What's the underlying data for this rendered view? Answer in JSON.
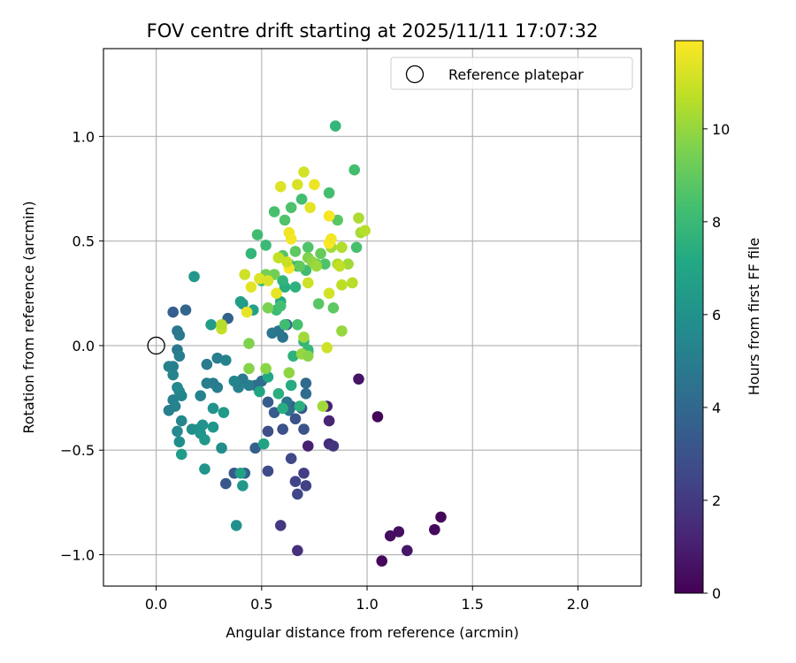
{
  "chart_data": {
    "type": "scatter",
    "title": "FOV centre drift starting at 2025/11/11 17:07:32",
    "xlabel": "Angular distance from reference (arcmin)",
    "ylabel": "Rotation from reference (arcmin)",
    "xlim": [
      -0.25,
      2.3
    ],
    "ylim": [
      -1.15,
      1.42
    ],
    "xticks": [
      0.0,
      0.5,
      1.0,
      1.5,
      2.0
    ],
    "xtick_labels": [
      "0.0",
      "0.5",
      "1.0",
      "1.5",
      "2.0"
    ],
    "yticks": [
      -1.0,
      -0.5,
      0.0,
      0.5,
      1.0
    ],
    "ytick_labels": [
      "−1.0",
      "−0.5",
      "0.0",
      "0.5",
      "1.0"
    ],
    "grid": true,
    "legend": {
      "position": "top-right",
      "entries": [
        "Reference platepar"
      ]
    },
    "reference_point": {
      "x": 0.0,
      "y": 0.0,
      "label": "Reference platepar"
    },
    "colorbar": {
      "label": "Hours from first FF file",
      "colormap": "viridis",
      "range": [
        0,
        11.9
      ],
      "ticks": [
        0,
        2,
        4,
        6,
        8,
        10
      ],
      "tick_labels": [
        "0",
        "2",
        "4",
        "6",
        "8",
        "10"
      ]
    },
    "points": [
      [
        1.05,
        -0.34,
        0.1
      ],
      [
        1.07,
        -1.03,
        0.2
      ],
      [
        1.11,
        -0.91,
        0.4
      ],
      [
        1.15,
        -0.89,
        0.5
      ],
      [
        1.19,
        -0.98,
        0.7
      ],
      [
        1.32,
        -0.88,
        0.3
      ],
      [
        1.35,
        -0.82,
        0.2
      ],
      [
        0.96,
        -0.16,
        0.6
      ],
      [
        0.72,
        -0.48,
        1.0
      ],
      [
        0.81,
        -0.29,
        1.1
      ],
      [
        0.82,
        -0.36,
        1.2
      ],
      [
        0.82,
        -0.47,
        1.5
      ],
      [
        0.84,
        -0.48,
        1.8
      ],
      [
        0.67,
        -0.98,
        1.6
      ],
      [
        0.59,
        -0.86,
        2.0
      ],
      [
        0.7,
        -0.61,
        2.2
      ],
      [
        0.71,
        -0.67,
        2.3
      ],
      [
        0.66,
        -0.65,
        2.4
      ],
      [
        0.67,
        -0.71,
        2.5
      ],
      [
        0.64,
        -0.54,
        2.6
      ],
      [
        0.53,
        -0.6,
        2.7
      ],
      [
        0.53,
        -0.41,
        2.8
      ],
      [
        0.6,
        -0.4,
        2.9
      ],
      [
        0.66,
        -0.35,
        3.0
      ],
      [
        0.7,
        -0.4,
        3.1
      ],
      [
        0.69,
        -0.3,
        3.2
      ],
      [
        0.64,
        -0.29,
        3.3
      ],
      [
        0.56,
        -0.32,
        3.4
      ],
      [
        0.53,
        -0.27,
        3.5
      ],
      [
        0.47,
        -0.49,
        3.6
      ],
      [
        0.33,
        -0.66,
        3.2
      ],
      [
        0.37,
        -0.61,
        3.3
      ],
      [
        0.42,
        -0.61,
        3.6
      ],
      [
        0.34,
        0.13,
        3.7
      ],
      [
        0.08,
        0.16,
        3.5
      ],
      [
        0.14,
        0.17,
        3.9
      ],
      [
        0.62,
        0.1,
        3.8
      ],
      [
        0.71,
        -0.18,
        4.0
      ],
      [
        0.71,
        -0.23,
        4.2
      ],
      [
        0.63,
        -0.31,
        4.4
      ],
      [
        0.62,
        -0.27,
        4.6
      ],
      [
        0.47,
        -0.19,
        4.1
      ],
      [
        0.5,
        -0.17,
        4.3
      ],
      [
        0.58,
        0.07,
        4.5
      ],
      [
        0.55,
        0.06,
        4.7
      ],
      [
        0.6,
        0.04,
        4.5
      ],
      [
        0.41,
        -0.16,
        4.8
      ],
      [
        0.44,
        -0.19,
        5.0
      ],
      [
        0.39,
        -0.2,
        5.2
      ],
      [
        0.37,
        -0.17,
        5.4
      ],
      [
        0.29,
        -0.2,
        5.0
      ],
      [
        0.27,
        -0.18,
        4.9
      ],
      [
        0.24,
        -0.18,
        5.1
      ],
      [
        0.21,
        -0.24,
        5.3
      ],
      [
        0.24,
        -0.09,
        4.9
      ],
      [
        0.29,
        -0.06,
        5.0
      ],
      [
        0.33,
        -0.07,
        5.3
      ],
      [
        0.1,
        0.07,
        4.6
      ],
      [
        0.11,
        0.05,
        4.8
      ],
      [
        0.1,
        -0.02,
        4.7
      ],
      [
        0.11,
        -0.05,
        5.0
      ],
      [
        0.08,
        -0.1,
        5.1
      ],
      [
        0.06,
        -0.1,
        5.2
      ],
      [
        0.08,
        -0.14,
        5.3
      ],
      [
        0.1,
        -0.2,
        5.5
      ],
      [
        0.11,
        -0.22,
        5.6
      ],
      [
        0.12,
        -0.24,
        5.4
      ],
      [
        0.08,
        -0.26,
        5.2
      ],
      [
        0.06,
        -0.31,
        5.0
      ],
      [
        0.09,
        -0.29,
        5.3
      ],
      [
        0.12,
        -0.36,
        5.5
      ],
      [
        0.1,
        -0.41,
        5.6
      ],
      [
        0.11,
        -0.46,
        5.8
      ],
      [
        0.17,
        -0.4,
        5.7
      ],
      [
        0.2,
        -0.4,
        5.9
      ],
      [
        0.22,
        -0.38,
        6.0
      ],
      [
        0.21,
        -0.42,
        6.1
      ],
      [
        0.23,
        -0.45,
        6.3
      ],
      [
        0.27,
        -0.39,
        6.2
      ],
      [
        0.31,
        -0.49,
        5.8
      ],
      [
        0.27,
        -0.3,
        6.0
      ],
      [
        0.23,
        -0.59,
        6.1
      ],
      [
        0.41,
        -0.67,
        6.3
      ],
      [
        0.38,
        -0.86,
        5.9
      ],
      [
        0.4,
        -0.61,
        6.8
      ],
      [
        0.51,
        -0.47,
        6.9
      ],
      [
        0.32,
        -0.32,
        6.4
      ],
      [
        0.12,
        -0.52,
        6.5
      ],
      [
        0.18,
        0.33,
        6.3
      ],
      [
        0.26,
        0.1,
        6.5
      ],
      [
        0.41,
        0.2,
        6.2
      ],
      [
        0.4,
        0.21,
        6.6
      ],
      [
        0.46,
        0.17,
        6.8
      ],
      [
        0.49,
        -0.22,
        7.0
      ],
      [
        0.53,
        -0.15,
        7.1
      ],
      [
        0.64,
        -0.19,
        7.3
      ],
      [
        0.6,
        -0.3,
        7.4
      ],
      [
        0.68,
        -0.29,
        7.5
      ],
      [
        0.65,
        -0.05,
        7.6
      ],
      [
        0.7,
        0.02,
        7.7
      ],
      [
        0.72,
        -0.03,
        7.8
      ],
      [
        0.72,
        -0.02,
        7.9
      ],
      [
        0.58,
        -0.23,
        7.5
      ],
      [
        0.59,
        0.21,
        7.2
      ],
      [
        0.61,
        0.28,
        7.4
      ],
      [
        0.66,
        0.28,
        7.6
      ],
      [
        0.6,
        0.31,
        7.7
      ],
      [
        0.67,
        0.38,
        7.5
      ],
      [
        0.63,
        0.39,
        7.8
      ],
      [
        0.5,
        0.31,
        7.9
      ],
      [
        0.52,
        0.48,
        8.0
      ],
      [
        0.45,
        0.44,
        7.8
      ],
      [
        0.48,
        0.53,
        8.2
      ],
      [
        0.57,
        0.17,
        8.1
      ],
      [
        0.59,
        0.19,
        8.3
      ],
      [
        0.61,
        0.1,
        8.2
      ],
      [
        0.67,
        0.1,
        8.4
      ],
      [
        0.56,
        0.64,
        8.4
      ],
      [
        0.61,
        0.6,
        8.6
      ],
      [
        0.64,
        0.66,
        8.5
      ],
      [
        0.69,
        0.7,
        8.3
      ],
      [
        0.72,
        0.47,
        8.6
      ],
      [
        0.71,
        0.36,
        8.2
      ],
      [
        0.77,
        0.2,
        8.8
      ],
      [
        0.8,
        0.39,
        8.5
      ],
      [
        0.82,
        0.73,
        8.3
      ],
      [
        0.84,
        0.18,
        8.9
      ],
      [
        0.86,
        0.6,
        8.8
      ],
      [
        0.85,
        1.05,
        7.8
      ],
      [
        0.94,
        0.84,
        8.3
      ],
      [
        0.95,
        0.47,
        8.4
      ],
      [
        0.6,
        0.43,
        8.7
      ],
      [
        0.66,
        0.45,
        8.9
      ],
      [
        0.68,
        0.38,
        9.0
      ],
      [
        0.76,
        0.39,
        9.2
      ],
      [
        0.78,
        0.44,
        9.1
      ],
      [
        0.56,
        0.34,
        9.3
      ],
      [
        0.52,
        0.34,
        9.4
      ],
      [
        0.53,
        0.18,
        9.5
      ],
      [
        0.44,
        0.01,
        9.6
      ],
      [
        0.44,
        -0.11,
        9.7
      ],
      [
        0.52,
        -0.11,
        9.8
      ],
      [
        0.63,
        -0.13,
        9.9
      ],
      [
        0.69,
        -0.04,
        10.0
      ],
      [
        0.72,
        -0.05,
        9.8
      ],
      [
        0.7,
        0.04,
        10.2
      ],
      [
        0.72,
        0.42,
        9.6
      ],
      [
        0.74,
        0.4,
        9.9
      ],
      [
        0.76,
        0.38,
        10.1
      ],
      [
        0.83,
        0.47,
        10.3
      ],
      [
        0.86,
        0.39,
        10.4
      ],
      [
        0.88,
        0.47,
        10.5
      ],
      [
        0.91,
        0.39,
        10.2
      ],
      [
        0.93,
        0.3,
        10.6
      ],
      [
        0.87,
        0.38,
        10.8
      ],
      [
        0.88,
        0.29,
        10.7
      ],
      [
        0.96,
        0.61,
        10.4
      ],
      [
        0.97,
        0.54,
        10.3
      ],
      [
        0.99,
        0.55,
        10.6
      ],
      [
        0.88,
        0.07,
        10.0
      ],
      [
        0.81,
        -0.01,
        11.0
      ],
      [
        0.79,
        -0.29,
        10.2
      ],
      [
        0.82,
        0.25,
        11.1
      ],
      [
        0.42,
        0.34,
        11.0
      ],
      [
        0.45,
        0.28,
        11.4
      ],
      [
        0.49,
        0.32,
        11.3
      ],
      [
        0.53,
        0.31,
        11.2
      ],
      [
        0.43,
        0.16,
        11.5
      ],
      [
        0.31,
        0.08,
        10.9
      ],
      [
        0.31,
        0.1,
        10.6
      ],
      [
        0.58,
        0.42,
        11.5
      ],
      [
        0.63,
        0.54,
        11.6
      ],
      [
        0.64,
        0.51,
        11.7
      ],
      [
        0.59,
        0.76,
        11.3
      ],
      [
        0.67,
        0.77,
        11.2
      ],
      [
        0.7,
        0.83,
        11.1
      ],
      [
        0.73,
        0.66,
        11.4
      ],
      [
        0.75,
        0.77,
        11.6
      ],
      [
        0.82,
        0.62,
        11.8
      ],
      [
        0.82,
        0.49,
        11.9
      ],
      [
        0.83,
        0.51,
        11.7
      ],
      [
        0.72,
        0.3,
        11.0
      ],
      [
        0.63,
        0.37,
        11.8
      ],
      [
        0.57,
        0.25,
        11.5
      ],
      [
        0.58,
        0.42,
        10.8
      ],
      [
        0.62,
        0.4,
        10.9
      ]
    ]
  }
}
